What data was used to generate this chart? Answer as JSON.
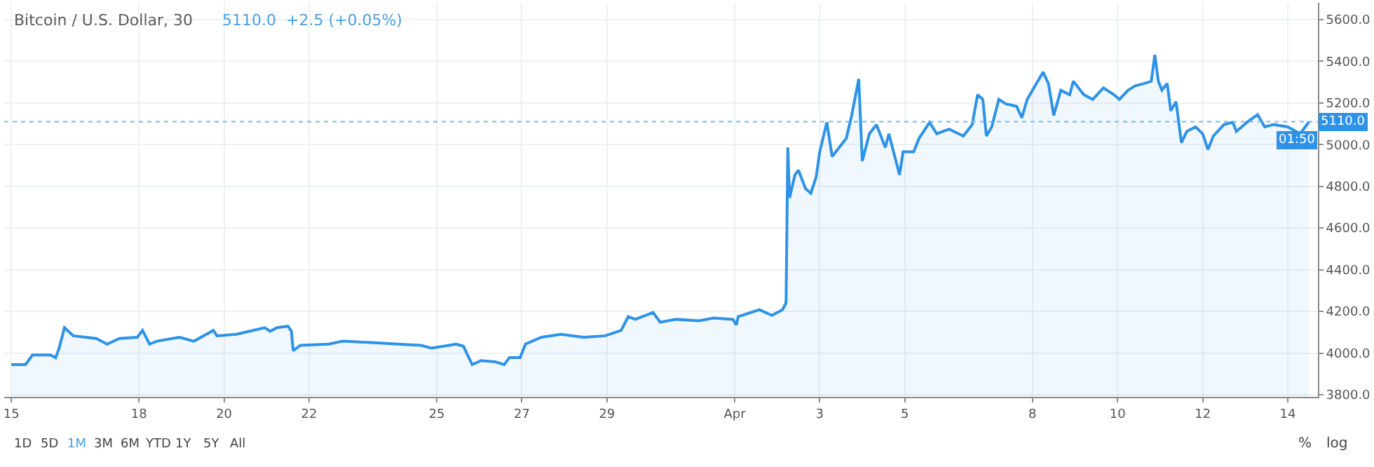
{
  "chart_data": {
    "type": "area",
    "title": "Bitcoin / U.S. Dollar, 30",
    "subtitle": "5110.0  +2.5 (+0.05%)",
    "x": [
      "--03-15T00:00",
      "--03-15T08:00",
      "--03-15T12:00",
      "--03-15T22:00",
      "--03-16T01:00",
      "--03-16T03:00",
      "--03-16T06:00",
      "--03-16T11:00",
      "--03-17T00:00",
      "--03-17T06:00",
      "--03-17T13:00",
      "--03-17T23:00",
      "--03-18T02:00",
      "--03-18T06:00",
      "--03-18T10:00",
      "--03-18T23:00",
      "--03-19T07:00",
      "--03-19T18:00",
      "--03-19T20:00",
      "--03-20T07:00",
      "--03-20T12:00",
      "--03-20T23:00",
      "--03-21T02:00",
      "--03-21T06:00",
      "--03-21T12:00",
      "--03-21T14:00",
      "--03-21T15:00",
      "--03-21T19:00",
      "--03-22T11:00",
      "--03-22T19:00",
      "--03-23T13:00",
      "--03-24T02:00",
      "--03-24T15:00",
      "--03-24T21:00",
      "--03-25T11:00",
      "--03-25T15:00",
      "--03-25T17:00",
      "--03-25T20:00",
      "--03-26T01:00",
      "--03-26T09:00",
      "--03-26T14:00",
      "--03-26T17:00",
      "--03-26T23:00",
      "--03-27T02:00",
      "--03-27T11:00",
      "--03-27T22:00",
      "--03-28T11:00",
      "--03-28T23:00",
      "--03-29T08:00",
      "--03-29T12:00",
      "--03-29T16:00",
      "--03-30T02:00",
      "--03-30T06:00",
      "--03-30T15:00",
      "--03-31T04:00",
      "--03-31T12:00",
      "--03-31T23:00",
      "--04-01T01:00",
      "--04-01T02:00",
      "--04-01T14:00",
      "--04-01T21:00",
      "--04-02T03:00",
      "--04-02T05:00",
      "--04-02T06:00",
      "--04-02T07:00",
      "--04-02T10:00",
      "--04-02T12:00",
      "--04-02T16:00",
      "--04-02T19:00",
      "--04-02T22:00",
      "--04-03T00:00",
      "--04-03T04:00",
      "--04-03T07:00",
      "--04-03T11:00",
      "--04-03T15:00",
      "--04-03T18:00",
      "--04-03T22:00",
      "--04-04T00:00",
      "--04-04T04:00",
      "--04-04T08:00",
      "--04-04T13:00",
      "--04-04T15:00",
      "--04-04T21:00",
      "--04-04T23:00",
      "--04-05T05:00",
      "--04-05T08:00",
      "--04-05T14:00",
      "--04-05T18:00",
      "--04-06T01:00",
      "--04-06T09:00",
      "--04-06T14:00",
      "--04-06T17:00",
      "--04-06T20:00",
      "--04-06T22:00",
      "--04-07T01:00",
      "--04-07T05:00",
      "--04-07T09:00",
      "--04-07T15:00",
      "--04-07T18:00",
      "--04-07T21:00",
      "--04-08T03:00",
      "--04-08T06:00",
      "--04-08T09:00",
      "--04-08T12:00",
      "--04-08T16:00",
      "--04-08T21:00",
      "--04-08T23:00",
      "--04-09T05:00",
      "--04-09T10:00",
      "--04-09T16:00",
      "--04-09T22:00",
      "--04-10T01:00",
      "--04-10T06:00",
      "--04-10T10:00",
      "--04-10T15:00",
      "--04-10T19:00",
      "--04-10T21:00",
      "--04-10T23:00",
      "--04-11T01:00",
      "--04-11T04:00",
      "--04-11T06:00",
      "--04-11T09:00",
      "--04-11T12:00",
      "--04-11T15:00",
      "--04-11T20:00",
      "--04-12T00:00",
      "--04-12T03:00",
      "--04-12T06:00",
      "--04-12T12:00",
      "--04-12T17:00",
      "--04-12T19:00",
      "--04-13T01:00",
      "--04-13T07:00",
      "--04-13T11:00",
      "--04-13T16:00",
      "--04-14T00:00",
      "--04-14T07:00",
      "--04-14T12:00"
    ],
    "series": [
      {
        "color": "#2e93e6",
        "values": [
          3945,
          3945,
          3991,
          3991,
          3978,
          4024,
          4122,
          4083,
          4070,
          4043,
          4070,
          4076,
          4109,
          4043,
          4057,
          4076,
          4057,
          4109,
          4083,
          4090,
          4100,
          4122,
          4105,
          4122,
          4129,
          4105,
          4011,
          4037,
          4043,
          4057,
          4050,
          4043,
          4037,
          4024,
          4043,
          4033,
          3997,
          3945,
          3964,
          3958,
          3945,
          3978,
          3978,
          4043,
          4076,
          4090,
          4076,
          4083,
          4109,
          4175,
          4162,
          4195,
          4148,
          4162,
          4155,
          4168,
          4162,
          4135,
          4175,
          4208,
          4181,
          4208,
          4241,
          4986,
          4745,
          4855,
          4877,
          4789,
          4767,
          4846,
          4965,
          5107,
          4943,
          4986,
          5030,
          5140,
          5315,
          4921,
          5052,
          5096,
          4986,
          5052,
          4855,
          4965,
          4965,
          5030,
          5107,
          5052,
          5074,
          5041,
          5096,
          5239,
          5217,
          5041,
          5085,
          5217,
          5195,
          5184,
          5129,
          5217,
          5304,
          5348,
          5293,
          5140,
          5261,
          5239,
          5304,
          5239,
          5217,
          5272,
          5239,
          5217,
          5261,
          5282,
          5293,
          5304,
          5430,
          5304,
          5261,
          5293,
          5162,
          5206,
          5009,
          5063,
          5085,
          5052,
          4976,
          5041,
          5096,
          5107,
          5063,
          5107,
          5144,
          5085,
          5096,
          5085,
          5052,
          5110
        ]
      }
    ],
    "xlim": [
      "--03-14T20:00",
      "--04-14T17:00"
    ],
    "xticks": [
      {
        "value": "--03-15",
        "label": "15"
      },
      {
        "value": "--03-18",
        "label": "18"
      },
      {
        "value": "--03-20",
        "label": "20"
      },
      {
        "value": "--03-22",
        "label": "22"
      },
      {
        "value": "--03-25",
        "label": "25"
      },
      {
        "value": "--03-27",
        "label": "27"
      },
      {
        "value": "--03-29",
        "label": "29"
      },
      {
        "value": "--04-01",
        "label": "Apr"
      },
      {
        "value": "--04-03",
        "label": "3"
      },
      {
        "value": "--04-05",
        "label": "5"
      },
      {
        "value": "--04-08",
        "label": "8"
      },
      {
        "value": "--04-10",
        "label": "10"
      },
      {
        "value": "--04-12",
        "label": "12"
      },
      {
        "value": "--04-14",
        "label": "14"
      }
    ],
    "ylim": [
      3790,
      5680
    ],
    "yticks": [
      {
        "value": 3800,
        "label": "3800.0"
      },
      {
        "value": 4000,
        "label": "4000.0"
      },
      {
        "value": 4200,
        "label": "4200.0"
      },
      {
        "value": 4400,
        "label": "4400.0"
      },
      {
        "value": 4600,
        "label": "4600.0"
      },
      {
        "value": 4800,
        "label": "4800.0"
      },
      {
        "value": 5000,
        "label": "5000.0"
      },
      {
        "value": 5200,
        "label": "5200.0"
      },
      {
        "value": 5400,
        "label": "5400.0"
      },
      {
        "value": 5600,
        "label": "5600.0"
      }
    ],
    "ref_lines": [
      {
        "axis": "y",
        "value": 5110,
        "label": "5110.0",
        "color": "#7fb8dc",
        "line_style": "dotted"
      }
    ],
    "annotations": [
      "01:50",
      "1D",
      "5D",
      "1M",
      "3M",
      "6M",
      "YTD",
      "1Y",
      "5Y",
      "All",
      "%",
      "log"
    ],
    "grid": true,
    "marker": "none",
    "line_style": "solid"
  }
}
